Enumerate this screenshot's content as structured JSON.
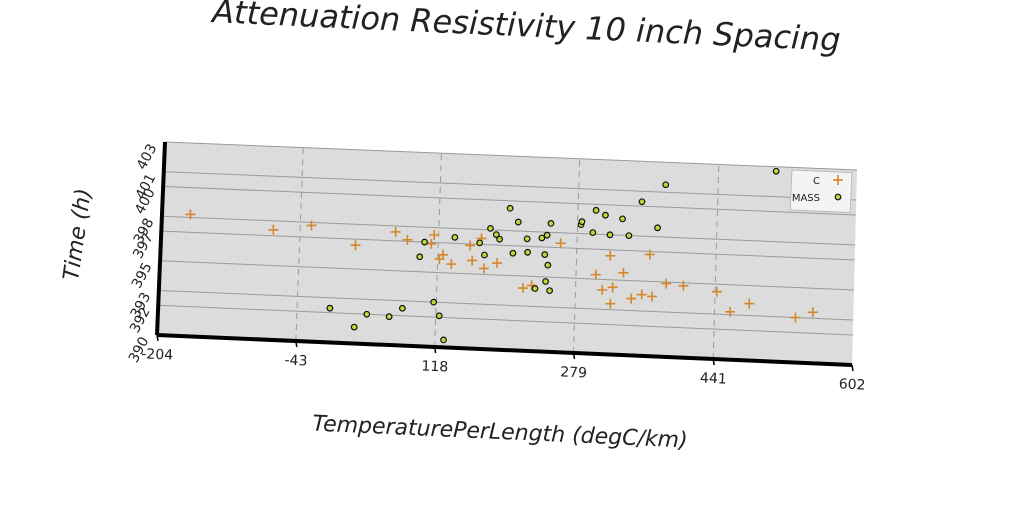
{
  "chart_data": {
    "type": "scatter",
    "title": "Attenuation Resistivity 10 inch Spacing",
    "xlabel": "TemperaturePerLength (degC/km)",
    "ylabel": "Time (h)",
    "xlim": [
      -204,
      602
    ],
    "ylim": [
      390,
      403
    ],
    "x_ticks": [
      "-204",
      "-43",
      "118",
      "279",
      "441",
      "602"
    ],
    "y_ticks": [
      "390",
      "392",
      "393",
      "395",
      "397",
      "398",
      "400",
      "401",
      "403"
    ],
    "grid": true,
    "legend_position": "top-right",
    "series": [
      {
        "name": "C",
        "marker": "plus",
        "color": "#d4872a",
        "points": [
          [
            -171,
            398.2
          ],
          [
            -74,
            397.4
          ],
          [
            -30,
            397.8
          ],
          [
            22,
            396.6
          ],
          [
            68,
            397.6
          ],
          [
            82,
            397.1
          ],
          [
            110,
            396.9
          ],
          [
            113,
            397.5
          ],
          [
            120,
            395.9
          ],
          [
            124,
            396.2
          ],
          [
            134,
            395.6
          ],
          [
            155,
            396.9
          ],
          [
            158,
            395.9
          ],
          [
            168,
            397.4
          ],
          [
            172,
            395.4
          ],
          [
            187,
            395.8
          ],
          [
            218,
            394.2
          ],
          [
            228,
            394.4
          ],
          [
            260,
            397.3
          ],
          [
            302,
            395.3
          ],
          [
            310,
            394.3
          ],
          [
            318,
            396.6
          ],
          [
            320,
            393.4
          ],
          [
            322,
            394.5
          ],
          [
            334,
            395.5
          ],
          [
            344,
            393.8
          ],
          [
            356,
            394.1
          ],
          [
            364,
            396.8
          ],
          [
            368,
            394.0
          ],
          [
            384,
            394.9
          ],
          [
            404,
            394.8
          ],
          [
            443,
            394.5
          ],
          [
            459,
            393.2
          ],
          [
            481,
            393.8
          ],
          [
            535,
            393.0
          ],
          [
            555,
            393.4
          ]
        ]
      },
      {
        "name": "MASS",
        "marker": "circle",
        "color": "#c5d63a",
        "points": [
          [
            -5,
            392.3
          ],
          [
            24,
            391.1
          ],
          [
            38,
            392.0
          ],
          [
            64,
            391.9
          ],
          [
            79,
            392.5
          ],
          [
            97,
            396.0
          ],
          [
            102,
            397.0
          ],
          [
            115,
            393.0
          ],
          [
            122,
            392.1
          ],
          [
            128,
            390.5
          ],
          [
            137,
            397.4
          ],
          [
            166,
            397.1
          ],
          [
            172,
            396.3
          ],
          [
            178,
            398.1
          ],
          [
            185,
            397.7
          ],
          [
            189,
            397.4
          ],
          [
            200,
            399.5
          ],
          [
            205,
            396.5
          ],
          [
            210,
            398.6
          ],
          [
            221,
            397.5
          ],
          [
            222,
            396.6
          ],
          [
            232,
            394.2
          ],
          [
            238,
            397.6
          ],
          [
            242,
            396.5
          ],
          [
            244,
            397.8
          ],
          [
            244,
            394.7
          ],
          [
            246,
            395.8
          ],
          [
            248,
            398.6
          ],
          [
            249,
            394.1
          ],
          [
            283,
            398.6
          ],
          [
            284,
            398.8
          ],
          [
            297,
            398.1
          ],
          [
            300,
            399.6
          ],
          [
            311,
            399.3
          ],
          [
            317,
            398.0
          ],
          [
            331,
            399.1
          ],
          [
            339,
            398.0
          ],
          [
            353,
            400.3
          ],
          [
            372,
            398.6
          ],
          [
            380,
            401.5
          ],
          [
            508,
            402.7
          ]
        ]
      }
    ]
  }
}
